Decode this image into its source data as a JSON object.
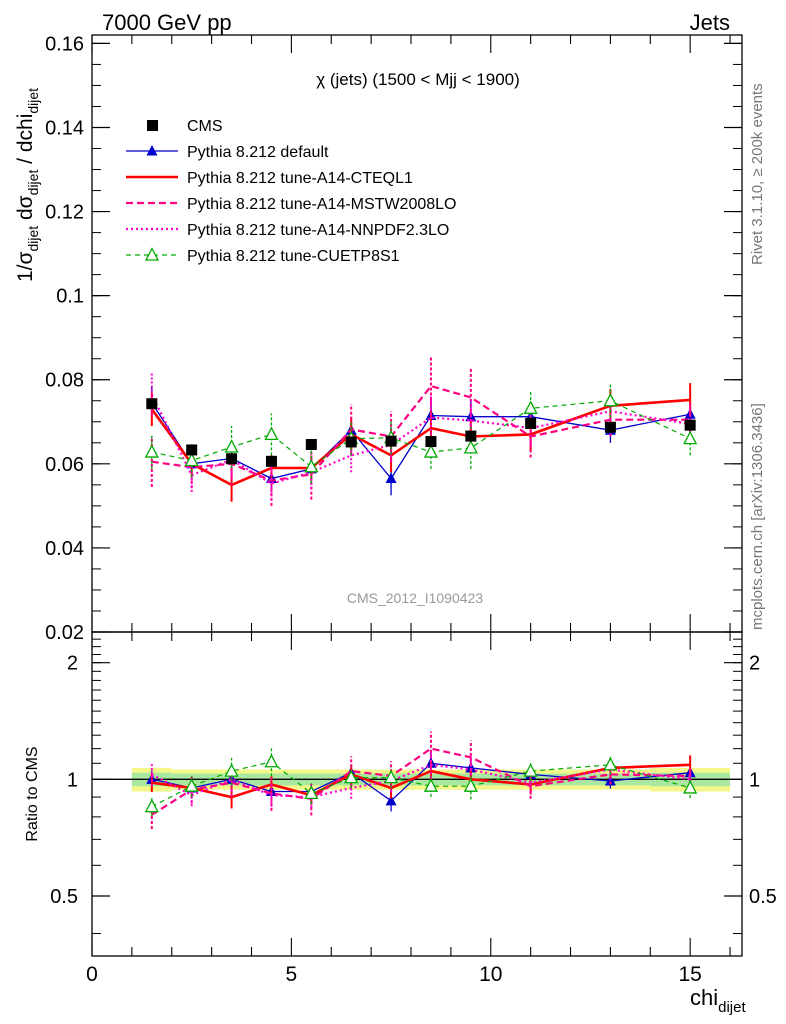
{
  "header": {
    "left": "7000 GeV pp",
    "right": "Jets"
  },
  "side_labels": {
    "rivet": "Rivet 3.1.10, ≥ 200k events",
    "mcplots": "mcplots.cern.ch [arXiv:1306.3436]"
  },
  "watermark": "CMS_2012_I1090423",
  "chart_data": [
    {
      "type": "line",
      "title": "χ (jets) (1500 < Mjj < 1900)",
      "ylabel": "1/σ_dijet dσ_dijet / dchi_dijet",
      "ylim": [
        0.02,
        0.162
      ],
      "xlim": [
        0,
        16.3
      ],
      "yticks": [
        0.02,
        0.04,
        0.06,
        0.08,
        0.1,
        0.12,
        0.14,
        0.16
      ],
      "ytick_labels": [
        "0.02",
        "0.04",
        "0.06",
        "0.08",
        "0.1",
        "0.12",
        "0.14",
        "0.16"
      ],
      "x": [
        1.5,
        2.5,
        3.5,
        4.5,
        5.5,
        6.5,
        7.5,
        8.5,
        9.5,
        11.0,
        13.0,
        15.0
      ],
      "series": [
        {
          "name": "CMS",
          "color": "#000000",
          "style": "data",
          "values": [
            0.0743,
            0.0633,
            0.0612,
            0.0606,
            0.0646,
            0.0652,
            0.0654,
            0.0653,
            0.0666,
            0.0696,
            0.0687,
            0.0692
          ]
        },
        {
          "name": "Pythia 8.212 default",
          "color": "#0000cc",
          "style": "solid-thin-triangle",
          "values": [
            0.0745,
            0.06,
            0.0613,
            0.0565,
            0.0588,
            0.068,
            0.0565,
            0.0715,
            0.0712,
            0.0712,
            0.068,
            0.0718
          ],
          "errors": [
            0.004,
            0.003,
            0.003,
            0.003,
            0.003,
            0.003,
            0.004,
            0.004,
            0.004,
            0.003,
            0.003,
            0.003
          ]
        },
        {
          "name": "Pythia 8.212 tune-A14-CTEQL1",
          "color": "#ff0000",
          "style": "solid-thick",
          "values": [
            0.073,
            0.06,
            0.055,
            0.059,
            0.059,
            0.067,
            0.062,
            0.0685,
            0.0665,
            0.067,
            0.0738,
            0.0752
          ],
          "errors": [
            0.004,
            0.003,
            0.004,
            0.003,
            0.003,
            0.004,
            0.004,
            0.004,
            0.004,
            0.004,
            0.004,
            0.004
          ]
        },
        {
          "name": "Pythia 8.212 tune-A14-MSTW2008LO",
          "color": "#ff0080",
          "style": "dashed",
          "values": [
            0.0605,
            0.0592,
            0.06,
            0.056,
            0.0575,
            0.0682,
            0.0665,
            0.0785,
            0.0758,
            0.0665,
            0.0705,
            0.0705
          ],
          "errors": [
            0.006,
            0.005,
            0.005,
            0.006,
            0.006,
            0.006,
            0.006,
            0.007,
            0.007,
            0.005,
            0.004,
            0.004
          ]
        },
        {
          "name": "Pythia 8.212 tune-A14-NNPDF2.3LO",
          "color": "#ff00cc",
          "style": "dotted",
          "values": [
            0.0765,
            0.0573,
            0.061,
            0.0553,
            0.058,
            0.062,
            0.0645,
            0.071,
            0.0703,
            0.0685,
            0.0725,
            0.0695
          ],
          "errors": [
            0.005,
            0.004,
            0.004,
            0.004,
            0.004,
            0.004,
            0.004,
            0.005,
            0.005,
            0.004,
            0.004,
            0.004
          ]
        },
        {
          "name": "Pythia 8.212 tune-CUETP8S1",
          "color": "#00aa00",
          "style": "dashed-thin-open-triangle",
          "values": [
            0.0628,
            0.0608,
            0.064,
            0.067,
            0.0593,
            0.066,
            0.0662,
            0.0628,
            0.0638,
            0.0732,
            0.075,
            0.066
          ],
          "errors": [
            0.004,
            0.004,
            0.005,
            0.005,
            0.004,
            0.004,
            0.004,
            0.004,
            0.005,
            0.004,
            0.004,
            0.004
          ]
        }
      ]
    },
    {
      "type": "line",
      "title": "",
      "ylabel": "Ratio to CMS",
      "xlabel": "chi_dijet",
      "ylim": [
        0.35,
        2.4
      ],
      "ylog": true,
      "xlim": [
        0,
        16.3
      ],
      "xticks": [
        0,
        5,
        10,
        15
      ],
      "xtick_labels": [
        "0",
        "5",
        "10",
        "15"
      ],
      "yticks": [
        0.5,
        1,
        2
      ],
      "ytick_labels": [
        "0.5",
        "1",
        "2"
      ],
      "x": [
        1.5,
        2.5,
        3.5,
        4.5,
        5.5,
        6.5,
        7.5,
        8.5,
        9.5,
        11.0,
        13.0,
        15.0
      ],
      "band_bins": [
        [
          1,
          2
        ],
        [
          2,
          3
        ],
        [
          3,
          4
        ],
        [
          4,
          5
        ],
        [
          5,
          6
        ],
        [
          6,
          7
        ],
        [
          7,
          8
        ],
        [
          8,
          9
        ],
        [
          9,
          10
        ],
        [
          10,
          12
        ],
        [
          12,
          14
        ],
        [
          14,
          16
        ]
      ],
      "band_inner": [
        0.04,
        0.035,
        0.035,
        0.035,
        0.035,
        0.035,
        0.035,
        0.035,
        0.035,
        0.035,
        0.035,
        0.04
      ],
      "band_outer": [
        0.07,
        0.06,
        0.06,
        0.06,
        0.06,
        0.06,
        0.06,
        0.06,
        0.06,
        0.06,
        0.06,
        0.07
      ],
      "series": [
        {
          "name": "Pythia 8.212 default",
          "color": "#0000cc",
          "values": [
            1.0,
            0.95,
            1.0,
            0.93,
            0.93,
            1.04,
            0.88,
            1.1,
            1.07,
            1.03,
            0.99,
            1.04
          ]
        },
        {
          "name": "Pythia 8.212 tune-A14-CTEQL1",
          "color": "#ff0000",
          "values": [
            0.98,
            0.95,
            0.9,
            0.97,
            0.91,
            1.03,
            0.95,
            1.05,
            1.0,
            0.97,
            1.07,
            1.09
          ]
        },
        {
          "name": "Pythia 8.212 tune-A14-MSTW2008LO",
          "color": "#ff0080",
          "values": [
            0.81,
            0.94,
            0.98,
            0.92,
            0.89,
            1.05,
            1.02,
            1.2,
            1.14,
            0.96,
            1.03,
            1.02
          ]
        },
        {
          "name": "Pythia 8.212 tune-A14-NNPDF2.3LO",
          "color": "#ff00cc",
          "values": [
            1.03,
            0.91,
            1.0,
            0.91,
            0.9,
            0.95,
            0.99,
            1.09,
            1.06,
            0.98,
            1.06,
            1.0
          ]
        },
        {
          "name": "Pythia 8.212 tune-CUETP8S1",
          "color": "#00aa00",
          "values": [
            0.85,
            0.96,
            1.05,
            1.11,
            0.92,
            1.01,
            1.01,
            0.96,
            0.96,
            1.05,
            1.09,
            0.95
          ]
        }
      ]
    }
  ]
}
